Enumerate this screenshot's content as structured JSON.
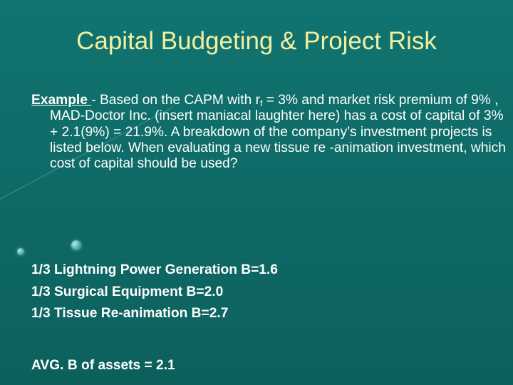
{
  "slide": {
    "title": "Capital Budgeting & Project Risk",
    "example": {
      "lead": "Example ",
      "text_1": "- Based on the CAPM with r",
      "subscript": "f",
      "text_2": " = 3% and market risk premium of 9% , MAD-Doctor Inc. (insert maniacal laughter here) has a cost of capital of 3% + 2.1(9%) = 21.9%. A breakdown of the company’s investment projects is listed below. When evaluating a new tissue re -animation investment, which cost of capital should be used?"
    },
    "assets": [
      "1/3 Lightning Power Generation B=1.6",
      "1/3 Surgical Equipment B=2.0",
      "1/3 Tissue Re-animation B=2.7"
    ],
    "average": "AVG. B of assets = 2.1"
  },
  "colors": {
    "background": "#0f6b67",
    "title": "#f1f0a2",
    "body_text": "#ffffff"
  }
}
